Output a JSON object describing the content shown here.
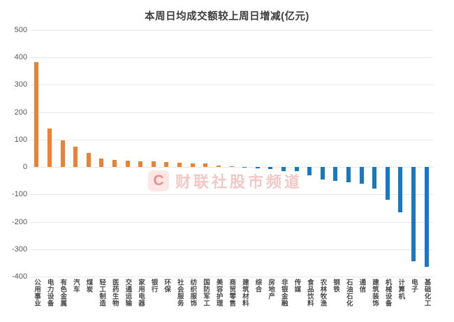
{
  "chart_data": {
    "type": "bar",
    "title": "本周日均成交额较上周日增减(亿元)",
    "categories": [
      "公用事业",
      "电力设备",
      "有色金属",
      "汽车",
      "煤炭",
      "轻工制造",
      "医药生物",
      "交通运输",
      "家用电器",
      "银行",
      "环保",
      "社会服务",
      "纺织服饰",
      "国防军工",
      "美容护理",
      "商贸零售",
      "建筑材料",
      "综合",
      "房地产",
      "非银金融",
      "传媒",
      "食品饮料",
      "农林牧渔",
      "钢铁",
      "石油石化",
      "通信",
      "建筑装饰",
      "机械设备",
      "计算机",
      "电子",
      "基础化工"
    ],
    "values": [
      383,
      140,
      98,
      75,
      52,
      30,
      27,
      24,
      21,
      20,
      19,
      15,
      14,
      13,
      6,
      2,
      -1,
      -6,
      -8,
      -14,
      -15,
      -30,
      -45,
      -51,
      -56,
      -60,
      -80,
      -120,
      -165,
      -345,
      -365
    ],
    "xlabel": "",
    "ylabel": "",
    "ylim": [
      -400,
      500
    ],
    "yticks": [
      500,
      400,
      300,
      200,
      100,
      0,
      -100,
      -200,
      -300,
      -400
    ],
    "grid": true,
    "legend_position": "none",
    "positive_color": "#ED8033",
    "negative_color": "#1779C2",
    "grid_color": "#e7e7e7",
    "tick_color": "#595959",
    "title_color": "#3c3c3c"
  },
  "watermark": {
    "logo_text": "C",
    "text": "财联社股市频道"
  }
}
